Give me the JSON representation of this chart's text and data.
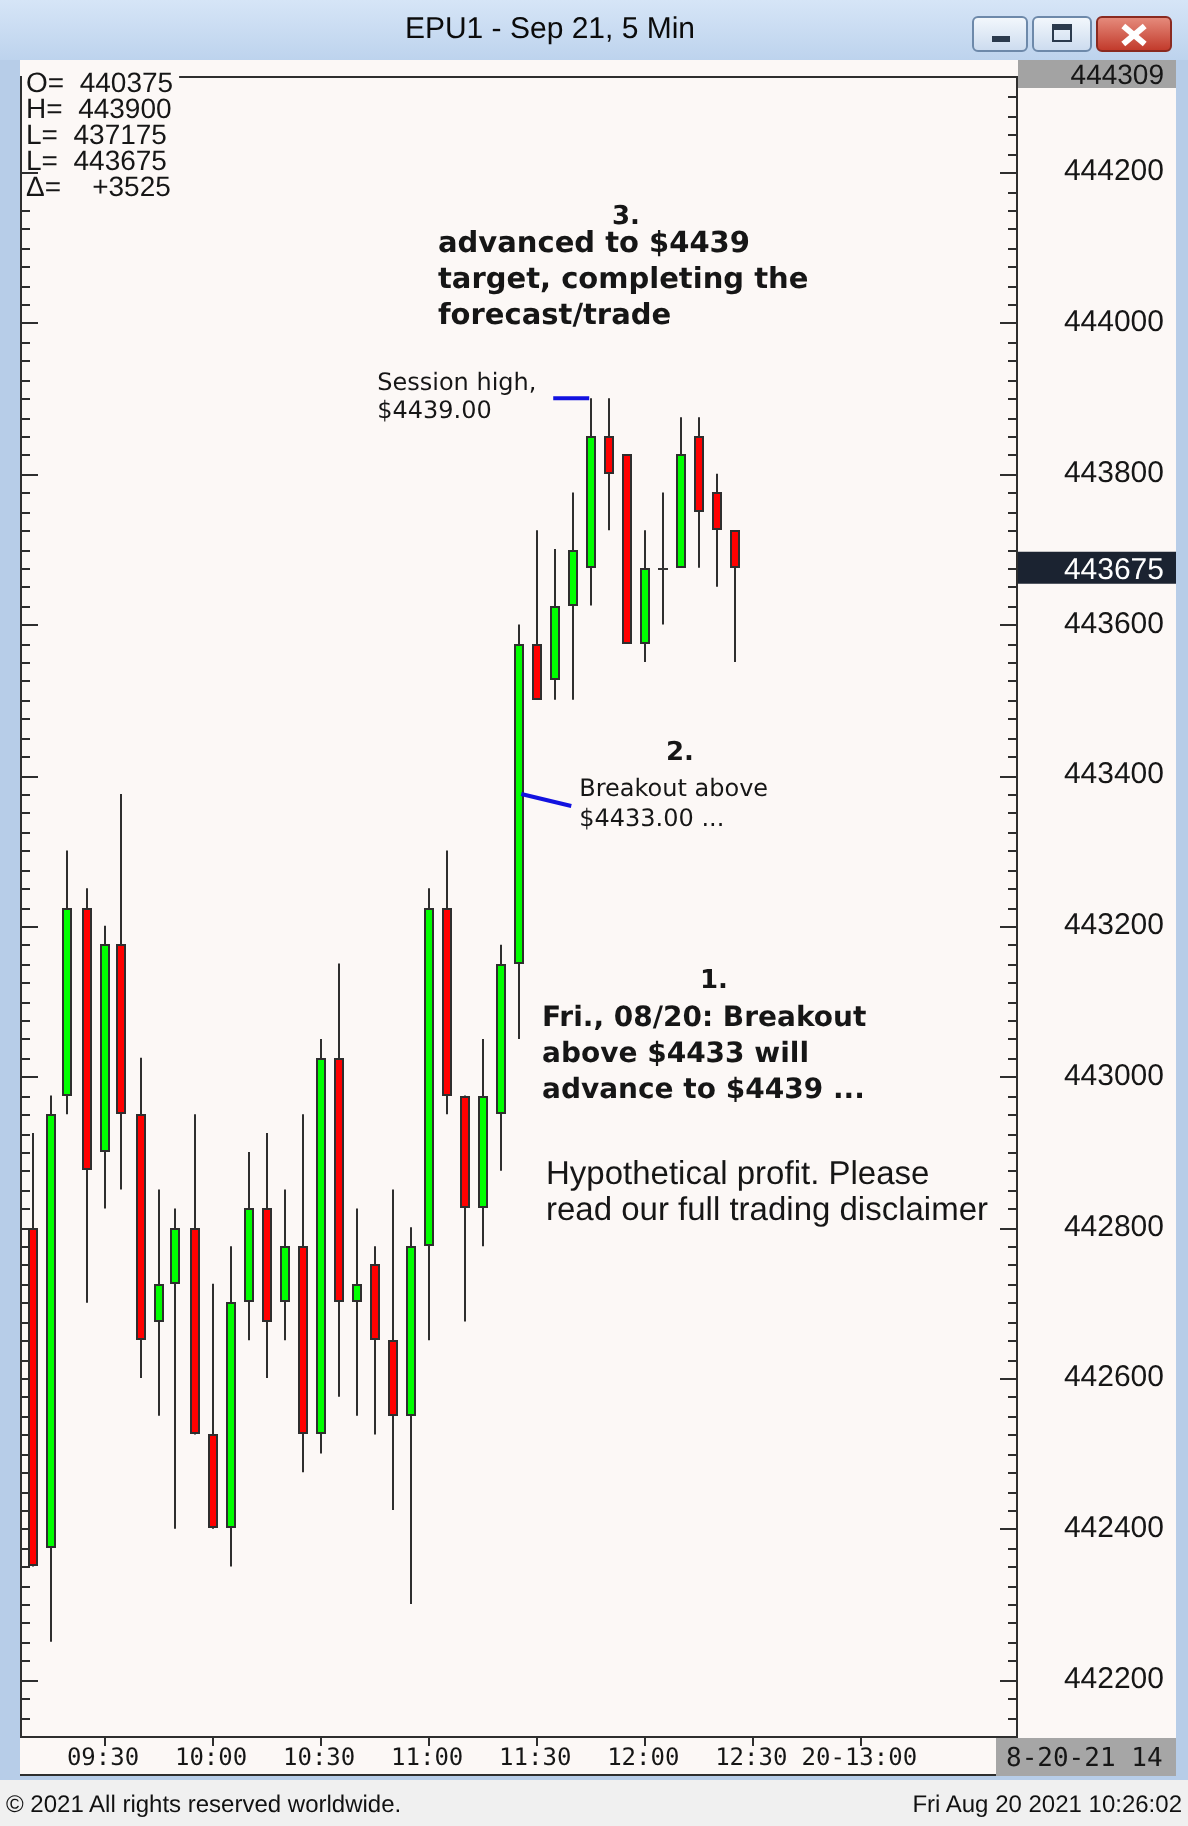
{
  "chart_data": {
    "type": "candlestick",
    "title": "EPU1 - Sep 21, 5 Min",
    "x": [
      9.167,
      9.25,
      9.333,
      9.417,
      9.5,
      9.583,
      9.667,
      9.75,
      9.833,
      9.917,
      10,
      10.083,
      10.167,
      10.25,
      10.333,
      10.417,
      10.5,
      10.583,
      10.667,
      10.75,
      10.833,
      10.917,
      11,
      11.083,
      11.167,
      11.25,
      11.333,
      11.417,
      11.5,
      11.583,
      11.667,
      11.75,
      11.833,
      11.917,
      12,
      12.083,
      12.167,
      12.25,
      12.333,
      12.417
    ],
    "ohlc": [
      [
        442800,
        442925,
        442350,
        442350
      ],
      [
        442375,
        442975,
        442250,
        442950
      ],
      [
        442975,
        443300,
        442950,
        443225
      ],
      [
        443225,
        443250,
        442700,
        442875
      ],
      [
        442900,
        443200,
        442825,
        443175
      ],
      [
        443175,
        443375,
        442850,
        442950
      ],
      [
        442950,
        443025,
        442600,
        442650
      ],
      [
        442675,
        442850,
        442550,
        442725
      ],
      [
        442725,
        442825,
        442400,
        442800
      ],
      [
        442800,
        442950,
        442525,
        442525
      ],
      [
        442525,
        442725,
        442400,
        442400
      ],
      [
        442400,
        442775,
        442350,
        442700
      ],
      [
        442700,
        442900,
        442650,
        442825
      ],
      [
        442825,
        442925,
        442600,
        442675
      ],
      [
        442700,
        442850,
        442650,
        442775
      ],
      [
        442775,
        442950,
        442475,
        442525
      ],
      [
        442525,
        443050,
        442500,
        443025
      ],
      [
        443025,
        443150,
        442575,
        442700
      ],
      [
        442700,
        442825,
        442550,
        442725
      ],
      [
        442750,
        442775,
        442525,
        442650
      ],
      [
        442650,
        442850,
        442425,
        442550
      ],
      [
        442550,
        442800,
        442300,
        442775
      ],
      [
        442775,
        443250,
        442650,
        443225
      ],
      [
        443225,
        443300,
        442950,
        442975
      ],
      [
        442975,
        442975,
        442675,
        442825
      ],
      [
        442825,
        443050,
        442775,
        442975
      ],
      [
        442950,
        443175,
        442875,
        443150
      ],
      [
        443150,
        443600,
        443050,
        443575
      ],
      [
        443575,
        443725,
        443500,
        443500
      ],
      [
        443525,
        443700,
        443500,
        443625
      ],
      [
        443625,
        443775,
        443500,
        443700
      ],
      [
        443675,
        443900,
        443625,
        443850
      ],
      [
        443850,
        443900,
        443725,
        443800
      ],
      [
        443825,
        443825,
        443575,
        443575
      ],
      [
        443575,
        443725,
        443550,
        443675
      ],
      [
        443675,
        443775,
        443600,
        443675
      ],
      [
        443675,
        443875,
        443675,
        443825
      ],
      [
        443850,
        443875,
        443675,
        443750
      ],
      [
        443775,
        443800,
        443650,
        443725
      ],
      [
        443725,
        443725,
        443550,
        443675
      ]
    ],
    "colors": [
      "#ff0000",
      "#00ff00",
      "#00ff00",
      "#ff0000",
      "#00ff00",
      "#ff0000",
      "#ff0000",
      "#00ff00",
      "#00ff00",
      "#ff0000",
      "#ff0000",
      "#00ff00",
      "#00ff00",
      "#ff0000",
      "#00ff00",
      "#ff0000",
      "#00ff00",
      "#ff0000",
      "#00ff00",
      "#ff0000",
      "#ff0000",
      "#00ff00",
      "#00ff00",
      "#ff0000",
      "#ff0000",
      "#00ff00",
      "#00ff00",
      "#00ff00",
      "#ff0000",
      "#00ff00",
      "#00ff00",
      "#00ff00",
      "#ff0000",
      "#ff0000",
      "#00ff00",
      "#333333",
      "#00ff00",
      "#ff0000",
      "#ff0000",
      "#ff0000"
    ],
    "xlim": [
      9.125,
      13.725
    ],
    "xticks": [
      {
        "value": 9.5,
        "label": "09:30"
      },
      {
        "value": 10,
        "label": "10:00"
      },
      {
        "value": 10.5,
        "label": "10:30"
      },
      {
        "value": 11,
        "label": "11:00"
      },
      {
        "value": 11.5,
        "label": "11:30"
      },
      {
        "value": 12,
        "label": "12:00"
      },
      {
        "value": 12.5,
        "label": "12:30"
      },
      {
        "value": 13,
        "label": "20-13:00"
      }
    ],
    "ylim": [
      442125,
      444325
    ],
    "yticks": [
      {
        "value": 442150,
        "label": null
      },
      {
        "value": 442175,
        "label": null
      },
      442200,
      {
        "value": 442225,
        "label": null
      },
      {
        "value": 442250,
        "label": null
      },
      {
        "value": 442275,
        "label": null
      },
      {
        "value": 442300,
        "label": null
      },
      {
        "value": 442325,
        "label": null
      },
      {
        "value": 442350,
        "label": null
      },
      {
        "value": 442375,
        "label": null
      },
      442400,
      {
        "value": 442425,
        "label": null
      },
      {
        "value": 442450,
        "label": null
      },
      {
        "value": 442475,
        "label": null
      },
      {
        "value": 442500,
        "label": null
      },
      {
        "value": 442525,
        "label": null
      },
      {
        "value": 442550,
        "label": null
      },
      {
        "value": 442575,
        "label": null
      },
      442600,
      {
        "value": 442625,
        "label": null
      },
      {
        "value": 442650,
        "label": null
      },
      {
        "value": 442675,
        "label": null
      },
      {
        "value": 442700,
        "label": null
      },
      {
        "value": 442725,
        "label": null
      },
      {
        "value": 442750,
        "label": null
      },
      {
        "value": 442775,
        "label": null
      },
      442800,
      {
        "value": 442825,
        "label": null
      },
      {
        "value": 442850,
        "label": null
      },
      {
        "value": 442875,
        "label": null
      },
      {
        "value": 442900,
        "label": null
      },
      {
        "value": 442925,
        "label": null
      },
      {
        "value": 442950,
        "label": null
      },
      {
        "value": 442975,
        "label": null
      },
      443000,
      {
        "value": 443025,
        "label": null
      },
      {
        "value": 443050,
        "label": null
      },
      {
        "value": 443075,
        "label": null
      },
      {
        "value": 443100,
        "label": null
      },
      {
        "value": 443125,
        "label": null
      },
      {
        "value": 443150,
        "label": null
      },
      {
        "value": 443175,
        "label": null
      },
      443200,
      {
        "value": 443225,
        "label": null
      },
      {
        "value": 443250,
        "label": null
      },
      {
        "value": 443275,
        "label": null
      },
      {
        "value": 443300,
        "label": null
      },
      {
        "value": 443325,
        "label": null
      },
      {
        "value": 443350,
        "label": null
      },
      {
        "value": 443375,
        "label": null
      },
      443400,
      {
        "value": 443425,
        "label": null
      },
      {
        "value": 443450,
        "label": null
      },
      {
        "value": 443475,
        "label": null
      },
      {
        "value": 443500,
        "label": null
      },
      {
        "value": 443525,
        "label": null
      },
      {
        "value": 443550,
        "label": null
      },
      {
        "value": 443575,
        "label": null
      },
      443600,
      {
        "value": 443625,
        "label": null
      },
      {
        "value": 443650,
        "label": null
      },
      {
        "value": 443675,
        "label": null
      },
      {
        "value": 443700,
        "label": null
      },
      {
        "value": 443725,
        "label": null
      },
      {
        "value": 443750,
        "label": null
      },
      {
        "value": 443775,
        "label": null
      },
      443800,
      {
        "value": 443825,
        "label": null
      },
      {
        "value": 443850,
        "label": null
      },
      {
        "value": 443875,
        "label": null
      },
      {
        "value": 443900,
        "label": null
      },
      {
        "value": 443925,
        "label": null
      },
      {
        "value": 443950,
        "label": null
      },
      {
        "value": 443975,
        "label": null
      },
      444000,
      {
        "value": 444025,
        "label": null
      },
      {
        "value": 444050,
        "label": null
      },
      {
        "value": 444075,
        "label": null
      },
      {
        "value": 444100,
        "label": null
      },
      {
        "value": 444125,
        "label": null
      },
      {
        "value": 444150,
        "label": null
      },
      {
        "value": 444175,
        "label": null
      },
      444200,
      {
        "value": 444225,
        "label": null
      },
      {
        "value": 444250,
        "label": null
      },
      {
        "value": 444275,
        "label": null
      },
      {
        "value": 444300,
        "label": null
      }
    ],
    "annotations": [
      "O=  440375",
      "H=  443900",
      "L=  437175",
      "L=  443675",
      "Δ=    +3525",
      "3.",
      "advanced to $4439 target, completing the forecast/trade",
      {
        "text": "Session high, $4439.00",
        "x": 11.75,
        "y": 443900
      },
      "2.",
      {
        "text": "Breakout above $4433.00 ...",
        "x": 11.417,
        "y": 443375
      },
      "1.",
      "Fri., 08/20: Breakout above $4433 will advance to $4439 ...",
      "Hypothetical profit. Please read our full trading disclaimer",
      "443675",
      "444309",
      "8-20-21 14",
      "© 2021 All rights reserved worldwide.",
      "Fri Aug 20 2021 10:26:02"
    ]
  }
}
